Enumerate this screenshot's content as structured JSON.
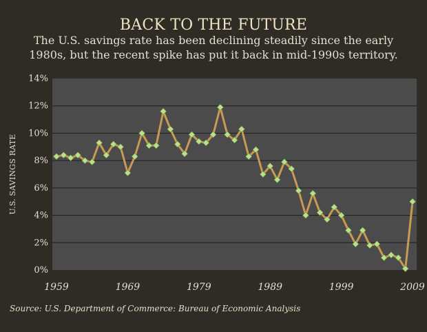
{
  "colors": {
    "background": "#2f2b25",
    "plot_bg": "#4b4b4b",
    "grid": "#1c1c1c",
    "line": "#c89a52",
    "marker": "#b9e08a"
  },
  "chart_data": {
    "type": "line",
    "title": "BACK TO THE FUTURE",
    "subtitle": "The U.S. savings rate has been declining steadily since the early 1980s, but the recent spike has put it back in mid-1990s territory.",
    "ylabel": "U.S. SAVINGS RATE",
    "xlabel": "",
    "x_tick_labels": [
      "1959",
      "1969",
      "1979",
      "1989",
      "1999",
      "2009"
    ],
    "y_tick_labels": [
      "0%",
      "2%",
      "4%",
      "6%",
      "8%",
      "10%",
      "12%",
      "14%"
    ],
    "xlim": [
      1959,
      2009
    ],
    "ylim": [
      0,
      14
    ],
    "grid": true,
    "x": [
      1959,
      1960,
      1961,
      1962,
      1963,
      1964,
      1965,
      1966,
      1967,
      1968,
      1969,
      1970,
      1971,
      1972,
      1973,
      1974,
      1975,
      1976,
      1977,
      1978,
      1979,
      1980,
      1981,
      1982,
      1983,
      1984,
      1985,
      1986,
      1987,
      1988,
      1989,
      1990,
      1991,
      1992,
      1993,
      1994,
      1995,
      1996,
      1997,
      1998,
      1999,
      2000,
      2001,
      2002,
      2003,
      2004,
      2005,
      2006,
      2007,
      2008,
      2009
    ],
    "values": [
      8.3,
      8.4,
      8.2,
      8.4,
      8.0,
      7.9,
      9.3,
      8.4,
      9.2,
      9.0,
      7.1,
      8.3,
      10.0,
      9.1,
      9.1,
      11.6,
      10.3,
      9.2,
      8.5,
      9.9,
      9.4,
      9.3,
      9.9,
      11.9,
      9.9,
      9.5,
      10.3,
      8.3,
      8.8,
      7.0,
      7.6,
      6.6,
      7.9,
      7.4,
      5.8,
      4.0,
      5.6,
      4.2,
      3.7,
      4.6,
      4.0,
      2.9,
      1.9,
      2.9,
      1.8,
      1.9,
      0.9,
      1.1,
      0.9,
      0.1,
      5.0
    ]
  },
  "source": "Source: U.S. Department of Commerce: Bureau of Economic Analysis"
}
